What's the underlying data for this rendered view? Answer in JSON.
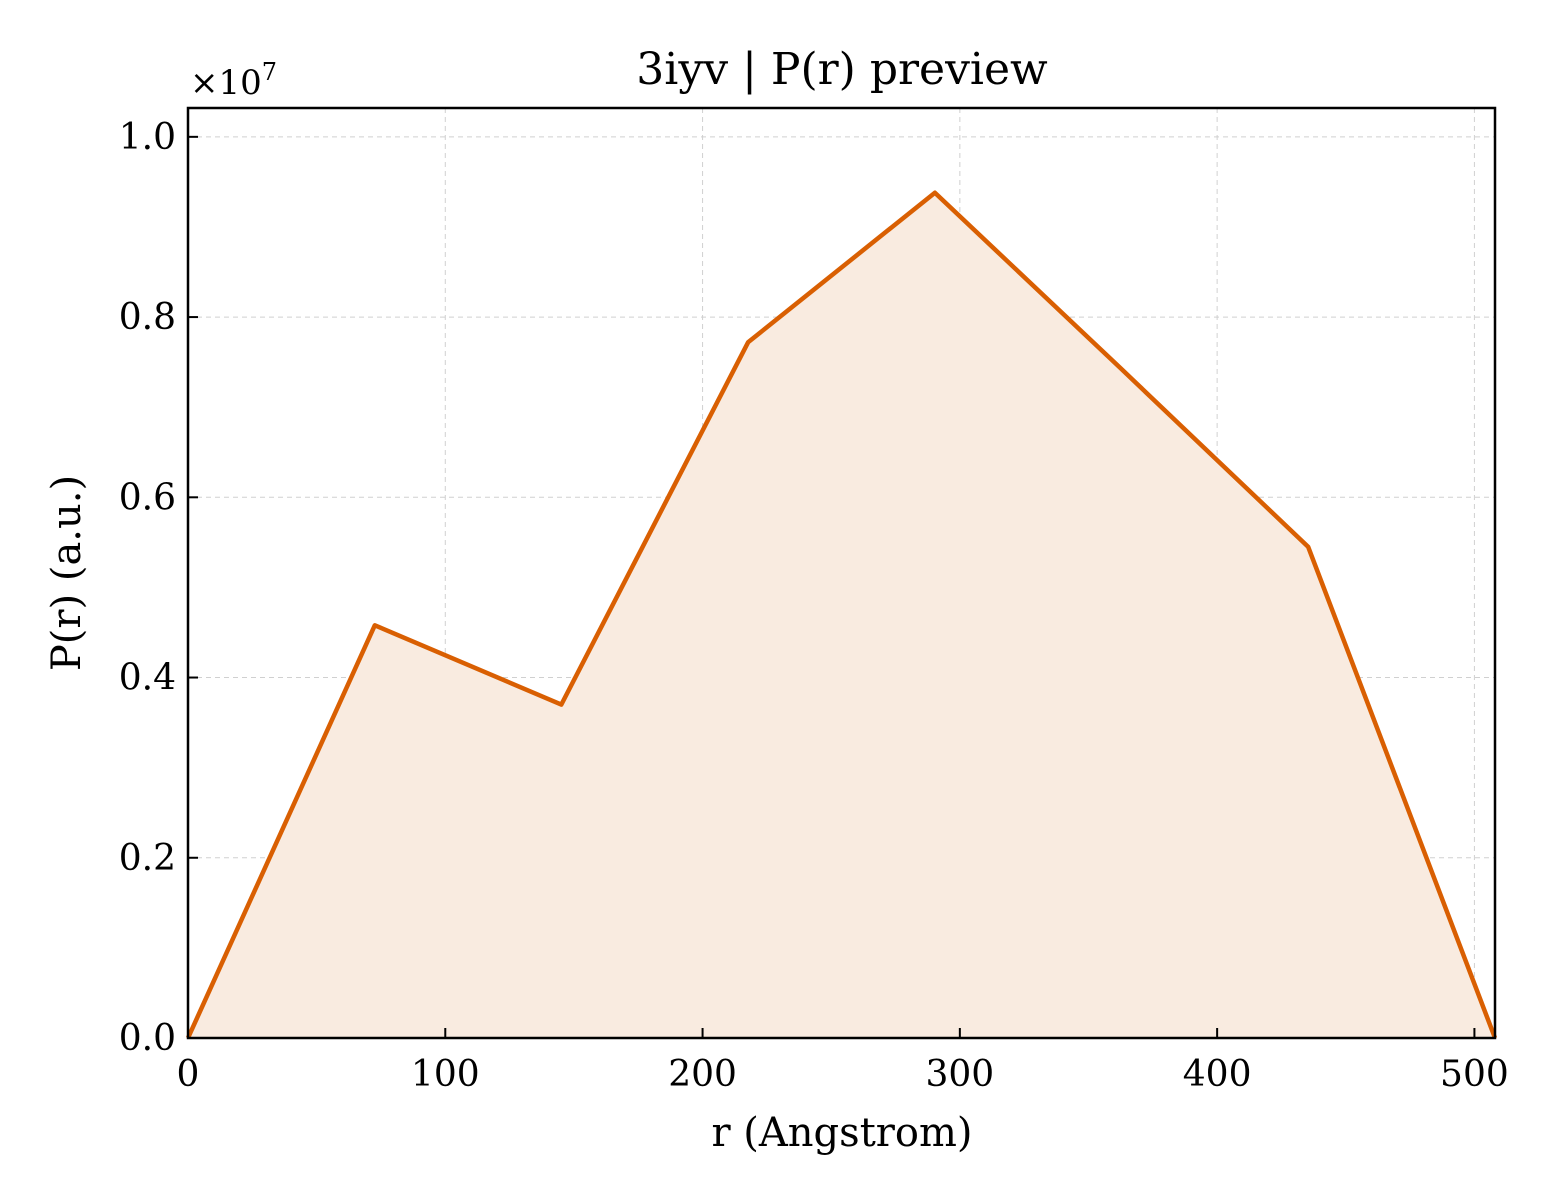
{
  "chart_data": {
    "type": "area",
    "title": "3iyv | P(r) preview",
    "xlabel": "r (Angstrom)",
    "ylabel": "P(r) (a.u.)",
    "y_multiplier_label": "×10",
    "y_multiplier_exponent": "7",
    "xlim": [
      0,
      508
    ],
    "ylim": [
      0,
      1.032
    ],
    "y_scale_factor": 10000000,
    "x_ticks": [
      0,
      100,
      200,
      300,
      400,
      500
    ],
    "x_tick_labels": [
      "0",
      "100",
      "200",
      "300",
      "400",
      "500"
    ],
    "y_ticks": [
      0.0,
      0.2,
      0.4,
      0.6,
      0.8,
      1.0
    ],
    "y_tick_labels": [
      "0.0",
      "0.2",
      "0.4",
      "0.6",
      "0.8",
      "1.0"
    ],
    "grid": true,
    "series": [
      {
        "x": [
          0,
          72.6,
          145.1,
          217.7,
          290.3,
          362.9,
          435.4,
          508
        ],
        "y": [
          0.0,
          0.458,
          0.37,
          0.772,
          0.938,
          0.742,
          0.545,
          0.0
        ]
      }
    ],
    "colors": {
      "line": "#d95f02",
      "fill": "#f9ebe0",
      "grid": "#d0d0d0"
    }
  }
}
